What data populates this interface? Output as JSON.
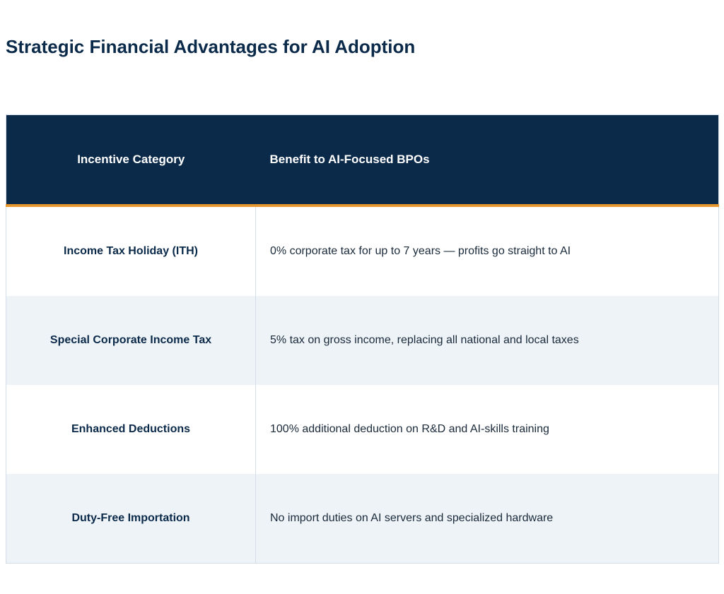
{
  "header": {
    "title": "Strategic Financial Advantages for AI Adoption"
  },
  "table": {
    "columns": [
      "Incentive Category",
      "Benefit to AI-Focused BPOs"
    ],
    "rows": [
      [
        "Income Tax Holiday (ITH)",
        "0% corporate tax for up to 7 years — profits go straight to AI"
      ],
      [
        "Special Corporate Income Tax",
        "5% tax on gross income, replacing all national and local taxes"
      ],
      [
        "Enhanced Deductions",
        "100% additional deduction on R&D and AI-skills training"
      ],
      [
        "Duty-Free Importation",
        "No import duties on AI servers and specialized hardware"
      ]
    ]
  }
}
